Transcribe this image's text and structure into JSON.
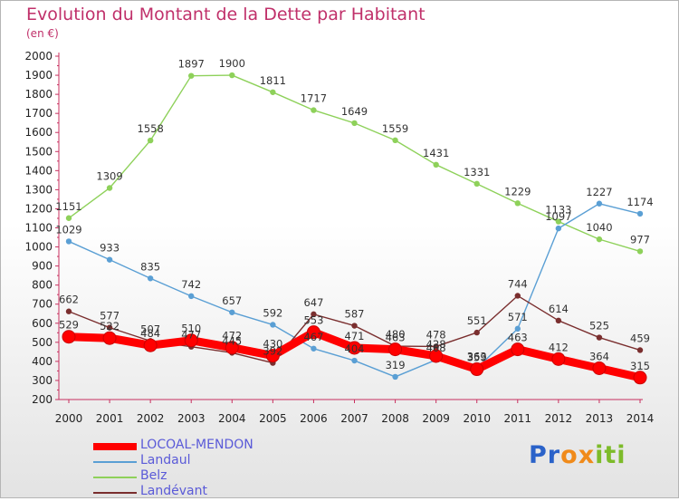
{
  "title": "Evolution du Montant de la Dette par Habitant",
  "subtitle": "(en €)",
  "logo": [
    "P",
    "r",
    "o",
    "x",
    "i",
    "t",
    "i"
  ],
  "logo_colors": [
    "#2a62c9",
    "#2a62c9",
    "#f08a1a",
    "#f08a1a",
    "#7dbb2a",
    "#7dbb2a",
    "#7dbb2a"
  ],
  "chart_data": {
    "type": "line",
    "x": [
      2000,
      2001,
      2002,
      2003,
      2004,
      2005,
      2006,
      2007,
      2008,
      2009,
      2010,
      2011,
      2012,
      2013,
      2014
    ],
    "ylim": [
      200,
      2000
    ],
    "yticks": [
      200,
      300,
      400,
      500,
      600,
      700,
      800,
      900,
      1000,
      1100,
      1200,
      1300,
      1400,
      1500,
      1600,
      1700,
      1800,
      1900,
      2000
    ],
    "grid": false,
    "legend_position": "bottom-left",
    "series": [
      {
        "name": "LOCOAL-MENDON",
        "color": "#ff0000",
        "values": [
          529,
          522,
          484,
          510,
          472,
          430,
          553,
          471,
          463,
          428,
          359,
          463,
          412,
          364,
          315
        ]
      },
      {
        "name": "Landaul",
        "color": "#5a9fd4",
        "values": [
          1029,
          933,
          835,
          742,
          657,
          592,
          467,
          404,
          319,
          408,
          363,
          571,
          1097,
          1227,
          1174
        ]
      },
      {
        "name": "Belz",
        "color": "#8ed15a",
        "values": [
          1151,
          1309,
          1558,
          1897,
          1900,
          1811,
          1717,
          1649,
          1559,
          1431,
          1331,
          1229,
          1133,
          1040,
          977
        ]
      },
      {
        "name": "Landévant",
        "color": "#7a2e2e",
        "values": [
          662,
          577,
          507,
          477,
          445,
          392,
          647,
          587,
          480,
          478,
          551,
          744,
          614,
          525,
          459
        ]
      }
    ]
  }
}
